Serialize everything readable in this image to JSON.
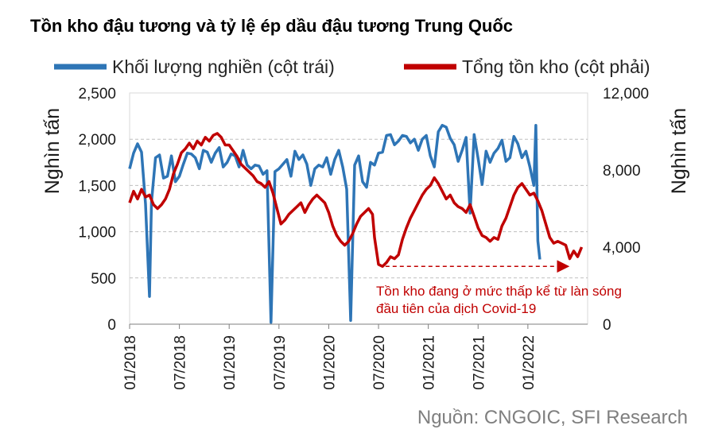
{
  "chart_data": {
    "type": "line",
    "title": "Tồn kho đậu tương và tỷ lệ ép dầu đậu tương Trung Quốc",
    "source": "Nguồn: CNGOIC, SFI Research",
    "legend_position": "top",
    "grid": true,
    "colors": {
      "left_series": "#2e75b6",
      "right_series": "#c00000"
    },
    "y_left": {
      "label": "Nghìn tấn",
      "range": [
        0,
        2500
      ],
      "ticks": [
        0,
        500,
        1000,
        1500,
        2000,
        2500
      ],
      "tick_labels": [
        "0",
        "500",
        "1,000",
        "1,500",
        "2,000",
        "2,500"
      ]
    },
    "y_right": {
      "label": "Nghìn tấn",
      "range": [
        0,
        12000
      ],
      "ticks": [
        0,
        4000,
        8000,
        12000
      ],
      "tick_labels": [
        "0",
        "4,000",
        "8,000",
        "12,000"
      ]
    },
    "x_axis": {
      "ticks": [
        "01/2018",
        "07/2018",
        "01/2019",
        "07/2019",
        "01/2020",
        "07/2020",
        "01/2021",
        "07/2021",
        "01/2022"
      ]
    },
    "annotation": {
      "line1": "Tồn kho đang ở mức thấp kể từ làn sóng",
      "line2": "đầu tiên của dịch Covid-19",
      "at_date": "2020.57",
      "value": 3000
    },
    "series": [
      {
        "name": "Khối lượng nghiền (cột trái)",
        "axis": "left",
        "points": [
          [
            2018.0,
            1680
          ],
          [
            2018.04,
            1850
          ],
          [
            2018.08,
            1950
          ],
          [
            2018.12,
            1860
          ],
          [
            2018.16,
            1300
          ],
          [
            2018.2,
            300
          ],
          [
            2018.22,
            1320
          ],
          [
            2018.26,
            1800
          ],
          [
            2018.3,
            1830
          ],
          [
            2018.34,
            1580
          ],
          [
            2018.38,
            1600
          ],
          [
            2018.42,
            1820
          ],
          [
            2018.46,
            1540
          ],
          [
            2018.5,
            1600
          ],
          [
            2018.54,
            1730
          ],
          [
            2018.58,
            1850
          ],
          [
            2018.62,
            1840
          ],
          [
            2018.66,
            1800
          ],
          [
            2018.7,
            1680
          ],
          [
            2018.74,
            1880
          ],
          [
            2018.78,
            1860
          ],
          [
            2018.82,
            1750
          ],
          [
            2018.86,
            1850
          ],
          [
            2018.9,
            1910
          ],
          [
            2018.94,
            1700
          ],
          [
            2018.98,
            1750
          ],
          [
            2019.02,
            1840
          ],
          [
            2019.06,
            1820
          ],
          [
            2019.1,
            1700
          ],
          [
            2019.14,
            1880
          ],
          [
            2019.18,
            1720
          ],
          [
            2019.22,
            1680
          ],
          [
            2019.26,
            1720
          ],
          [
            2019.3,
            1710
          ],
          [
            2019.34,
            1620
          ],
          [
            2019.38,
            1660
          ],
          [
            2019.42,
            20
          ],
          [
            2019.46,
            1650
          ],
          [
            2019.5,
            1680
          ],
          [
            2019.54,
            1730
          ],
          [
            2019.58,
            1780
          ],
          [
            2019.62,
            1600
          ],
          [
            2019.66,
            1870
          ],
          [
            2019.7,
            1780
          ],
          [
            2019.74,
            1830
          ],
          [
            2019.78,
            1730
          ],
          [
            2019.82,
            1500
          ],
          [
            2019.86,
            1680
          ],
          [
            2019.9,
            1720
          ],
          [
            2019.94,
            1700
          ],
          [
            2019.98,
            1800
          ],
          [
            2020.02,
            1620
          ],
          [
            2020.06,
            1780
          ],
          [
            2020.1,
            1880
          ],
          [
            2020.14,
            1700
          ],
          [
            2020.18,
            1460
          ],
          [
            2020.22,
            40
          ],
          [
            2020.26,
            1720
          ],
          [
            2020.3,
            1820
          ],
          [
            2020.34,
            1540
          ],
          [
            2020.38,
            1480
          ],
          [
            2020.42,
            1750
          ],
          [
            2020.46,
            1720
          ],
          [
            2020.5,
            1850
          ],
          [
            2020.54,
            1860
          ],
          [
            2020.58,
            2040
          ],
          [
            2020.62,
            2050
          ],
          [
            2020.66,
            1940
          ],
          [
            2020.7,
            1980
          ],
          [
            2020.74,
            2040
          ],
          [
            2020.78,
            2030
          ],
          [
            2020.82,
            1960
          ],
          [
            2020.86,
            2000
          ],
          [
            2020.9,
            1880
          ],
          [
            2020.94,
            2000
          ],
          [
            2020.98,
            2040
          ],
          [
            2021.02,
            1820
          ],
          [
            2021.06,
            1700
          ],
          [
            2021.1,
            2080
          ],
          [
            2021.14,
            2150
          ],
          [
            2021.18,
            2130
          ],
          [
            2021.22,
            2010
          ],
          [
            2021.26,
            1940
          ],
          [
            2021.3,
            1760
          ],
          [
            2021.34,
            1880
          ],
          [
            2021.38,
            2020
          ],
          [
            2021.42,
            1200
          ],
          [
            2021.46,
            2050
          ],
          [
            2021.5,
            1790
          ],
          [
            2021.54,
            1510
          ],
          [
            2021.58,
            1870
          ],
          [
            2021.62,
            1750
          ],
          [
            2021.66,
            1850
          ],
          [
            2021.7,
            1900
          ],
          [
            2021.74,
            1990
          ],
          [
            2021.78,
            1760
          ],
          [
            2021.82,
            1800
          ],
          [
            2021.86,
            2030
          ],
          [
            2021.9,
            1950
          ],
          [
            2021.94,
            1800
          ],
          [
            2021.98,
            1870
          ],
          [
            2022.02,
            1700
          ],
          [
            2022.06,
            1500
          ],
          [
            2022.08,
            2150
          ],
          [
            2022.1,
            900
          ],
          [
            2022.12,
            700
          ]
        ]
      },
      {
        "name": "Tổng tồn kho (cột phải)",
        "axis": "right",
        "points": [
          [
            2018.0,
            6300
          ],
          [
            2018.04,
            6900
          ],
          [
            2018.08,
            6500
          ],
          [
            2018.12,
            7000
          ],
          [
            2018.16,
            6600
          ],
          [
            2018.2,
            6700
          ],
          [
            2018.24,
            6200
          ],
          [
            2018.28,
            6000
          ],
          [
            2018.32,
            6200
          ],
          [
            2018.36,
            6500
          ],
          [
            2018.4,
            7000
          ],
          [
            2018.44,
            7800
          ],
          [
            2018.48,
            8300
          ],
          [
            2018.52,
            8900
          ],
          [
            2018.56,
            9100
          ],
          [
            2018.6,
            9400
          ],
          [
            2018.64,
            9100
          ],
          [
            2018.68,
            9500
          ],
          [
            2018.72,
            9300
          ],
          [
            2018.76,
            9700
          ],
          [
            2018.8,
            9500
          ],
          [
            2018.84,
            9800
          ],
          [
            2018.88,
            9900
          ],
          [
            2018.92,
            9700
          ],
          [
            2018.96,
            9300
          ],
          [
            2019.0,
            9300
          ],
          [
            2019.04,
            9000
          ],
          [
            2019.08,
            8700
          ],
          [
            2019.12,
            8300
          ],
          [
            2019.16,
            8100
          ],
          [
            2019.2,
            7900
          ],
          [
            2019.24,
            7700
          ],
          [
            2019.28,
            7400
          ],
          [
            2019.32,
            7300
          ],
          [
            2019.36,
            7100
          ],
          [
            2019.4,
            7400
          ],
          [
            2019.44,
            6800
          ],
          [
            2019.48,
            6000
          ],
          [
            2019.52,
            5200
          ],
          [
            2019.56,
            5400
          ],
          [
            2019.6,
            5700
          ],
          [
            2019.64,
            5900
          ],
          [
            2019.68,
            6100
          ],
          [
            2019.72,
            6300
          ],
          [
            2019.76,
            5800
          ],
          [
            2019.8,
            6200
          ],
          [
            2019.84,
            6500
          ],
          [
            2019.88,
            6700
          ],
          [
            2019.92,
            6500
          ],
          [
            2019.96,
            6300
          ],
          [
            2020.0,
            5800
          ],
          [
            2020.04,
            5100
          ],
          [
            2020.08,
            4600
          ],
          [
            2020.12,
            4300
          ],
          [
            2020.16,
            4100
          ],
          [
            2020.2,
            4300
          ],
          [
            2020.24,
            4700
          ],
          [
            2020.28,
            5200
          ],
          [
            2020.32,
            5600
          ],
          [
            2020.36,
            5800
          ],
          [
            2020.4,
            6000
          ],
          [
            2020.44,
            5700
          ],
          [
            2020.46,
            4500
          ],
          [
            2020.5,
            3100
          ],
          [
            2020.54,
            3000
          ],
          [
            2020.58,
            3200
          ],
          [
            2020.62,
            3500
          ],
          [
            2020.66,
            3400
          ],
          [
            2020.7,
            3600
          ],
          [
            2020.74,
            4400
          ],
          [
            2020.78,
            5000
          ],
          [
            2020.82,
            5500
          ],
          [
            2020.86,
            5900
          ],
          [
            2020.9,
            6300
          ],
          [
            2020.94,
            6700
          ],
          [
            2020.98,
            7000
          ],
          [
            2021.02,
            7200
          ],
          [
            2021.06,
            7600
          ],
          [
            2021.1,
            7300
          ],
          [
            2021.14,
            6900
          ],
          [
            2021.18,
            6500
          ],
          [
            2021.22,
            6700
          ],
          [
            2021.26,
            6300
          ],
          [
            2021.3,
            6100
          ],
          [
            2021.34,
            6000
          ],
          [
            2021.38,
            5800
          ],
          [
            2021.42,
            6200
          ],
          [
            2021.46,
            5600
          ],
          [
            2021.5,
            5000
          ],
          [
            2021.54,
            4600
          ],
          [
            2021.58,
            4500
          ],
          [
            2021.62,
            4300
          ],
          [
            2021.66,
            4500
          ],
          [
            2021.7,
            4400
          ],
          [
            2021.74,
            5100
          ],
          [
            2021.78,
            5500
          ],
          [
            2021.82,
            6100
          ],
          [
            2021.86,
            6700
          ],
          [
            2021.9,
            7100
          ],
          [
            2021.94,
            7300
          ],
          [
            2021.98,
            7000
          ],
          [
            2022.02,
            6700
          ],
          [
            2022.06,
            6800
          ],
          [
            2022.1,
            6400
          ],
          [
            2022.14,
            5900
          ],
          [
            2022.18,
            5200
          ],
          [
            2022.22,
            4500
          ],
          [
            2022.26,
            4200
          ],
          [
            2022.3,
            4300
          ],
          [
            2022.34,
            4200
          ],
          [
            2022.38,
            4100
          ],
          [
            2022.42,
            3400
          ],
          [
            2022.46,
            3800
          ],
          [
            2022.5,
            3500
          ],
          [
            2022.54,
            4000
          ]
        ]
      }
    ]
  }
}
